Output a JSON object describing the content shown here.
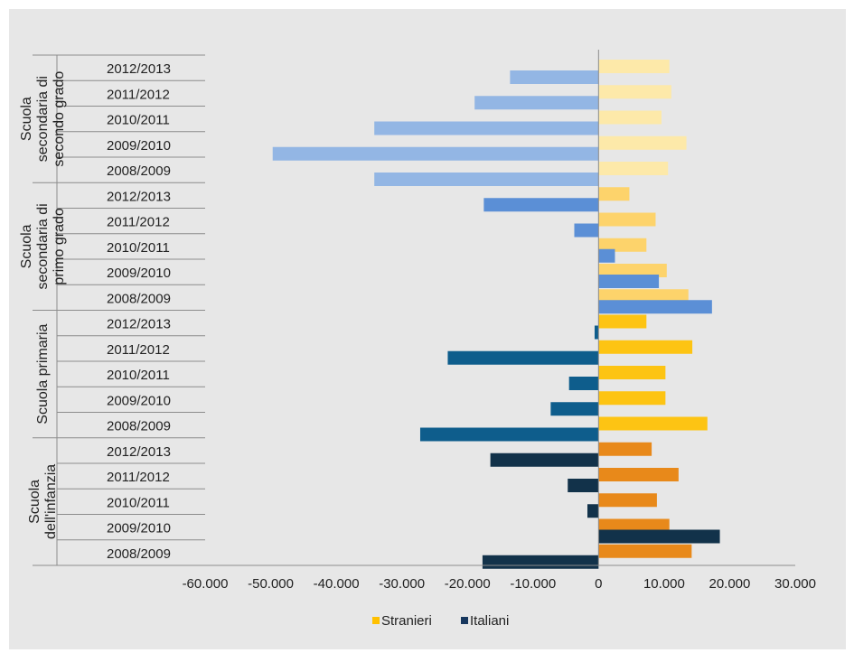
{
  "chart_data": {
    "type": "bar",
    "orientation": "horizontal",
    "groups": [
      {
        "name": "Scuola secondaria di secondo grado",
        "name_lines": [
          "Scuola",
          "secondaria di",
          "secondo grado"
        ]
      },
      {
        "name": "Scuola secondaria di primo grado",
        "name_lines": [
          "Scuola",
          "secondaria di",
          "primo grado"
        ]
      },
      {
        "name": "Scuola primaria",
        "name_lines": [
          "Scuola primaria"
        ]
      },
      {
        "name": "Scuola dell'infanzia",
        "name_lines": [
          "Scuola",
          "dell'infanzia"
        ]
      }
    ],
    "years": [
      "2012/2013",
      "2011/2012",
      "2010/2011",
      "2009/2010",
      "2008/2009"
    ],
    "series": [
      {
        "name": "Stranieri",
        "legend_color": "#ffc000",
        "values": [
          [
            10800,
            11100,
            9600,
            13400,
            10600
          ],
          [
            4700,
            8700,
            7300,
            10400,
            13700
          ],
          [
            7300,
            14300,
            10200,
            10200,
            16600
          ],
          [
            8100,
            12200,
            8900,
            10800,
            14200
          ]
        ]
      },
      {
        "name": "Italiani",
        "legend_color": "#17375e",
        "values": [
          [
            -13500,
            -18900,
            -34200,
            -49700,
            -34200
          ],
          [
            -17500,
            -3700,
            2500,
            9200,
            17300
          ],
          [
            -600,
            -23000,
            -4500,
            -7300,
            -27200
          ],
          [
            -16500,
            -4700,
            -1700,
            18500,
            -17700
          ]
        ]
      }
    ],
    "group_colors": {
      "Stranieri": [
        "#fde9a9",
        "#fdd36b",
        "#fdc413",
        "#e8891a"
      ],
      "Italiani": [
        "#93b6e4",
        "#5b8fd6",
        "#0e5d8c",
        "#12324a"
      ]
    },
    "xlim": [
      -60000,
      30000
    ],
    "x_ticks": [
      -60000,
      -50000,
      -40000,
      -30000,
      -20000,
      -10000,
      0,
      10000,
      20000,
      30000
    ],
    "x_tick_labels": [
      "-60.000",
      "-50.000",
      "-40.000",
      "-30.000",
      "-20.000",
      "-10.000",
      "0",
      "10.000",
      "20.000",
      "30.000"
    ],
    "grid": false,
    "legend_position": "bottom"
  }
}
